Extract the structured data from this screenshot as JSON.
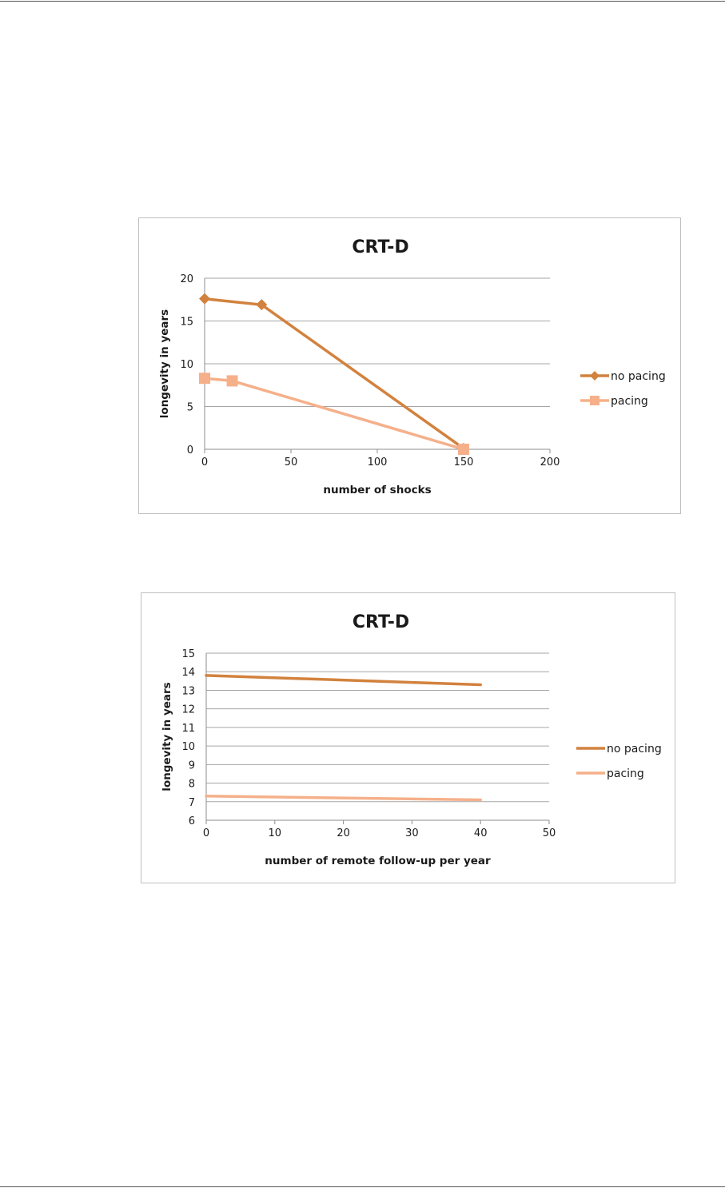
{
  "page": {
    "background": "#ffffff",
    "rule_color": "#555555"
  },
  "chart_data": [
    {
      "type": "line",
      "title": "CRT-D",
      "xlabel": "number of shocks",
      "ylabel": "longevity in years",
      "xlim": [
        0,
        200
      ],
      "ylim": [
        0,
        20
      ],
      "xticks": [
        "0",
        "50",
        "100",
        "150",
        "200"
      ],
      "yticks": [
        "0",
        "5",
        "10",
        "15",
        "20"
      ],
      "grid": "horizontal",
      "legend": "right",
      "series": [
        {
          "name": "no pacing",
          "color": "#d2823e",
          "marker": "diamond",
          "x": [
            0,
            33,
            150
          ],
          "y": [
            17.6,
            16.9,
            0.1
          ]
        },
        {
          "name": "pacing",
          "color": "#f5b08a",
          "marker": "square",
          "x": [
            0,
            16,
            150
          ],
          "y": [
            8.3,
            8.0,
            0.0
          ]
        }
      ]
    },
    {
      "type": "line",
      "title": "CRT-D",
      "xlabel": "number of remote follow-up per year",
      "ylabel": "longevity in years",
      "xlim": [
        0,
        50
      ],
      "ylim": [
        6,
        15
      ],
      "xticks": [
        "0",
        "10",
        "20",
        "30",
        "40",
        "50"
      ],
      "yticks": [
        "6",
        "7",
        "8",
        "9",
        "10",
        "11",
        "12",
        "13",
        "14",
        "15"
      ],
      "grid": "horizontal",
      "legend": "right",
      "series": [
        {
          "name": "no pacing",
          "color": "#d2823e",
          "marker": "none",
          "x": [
            0,
            40
          ],
          "y": [
            13.8,
            13.3
          ]
        },
        {
          "name": "pacing",
          "color": "#f5b08a",
          "marker": "none",
          "x": [
            0,
            40
          ],
          "y": [
            7.3,
            7.1
          ]
        }
      ]
    }
  ]
}
